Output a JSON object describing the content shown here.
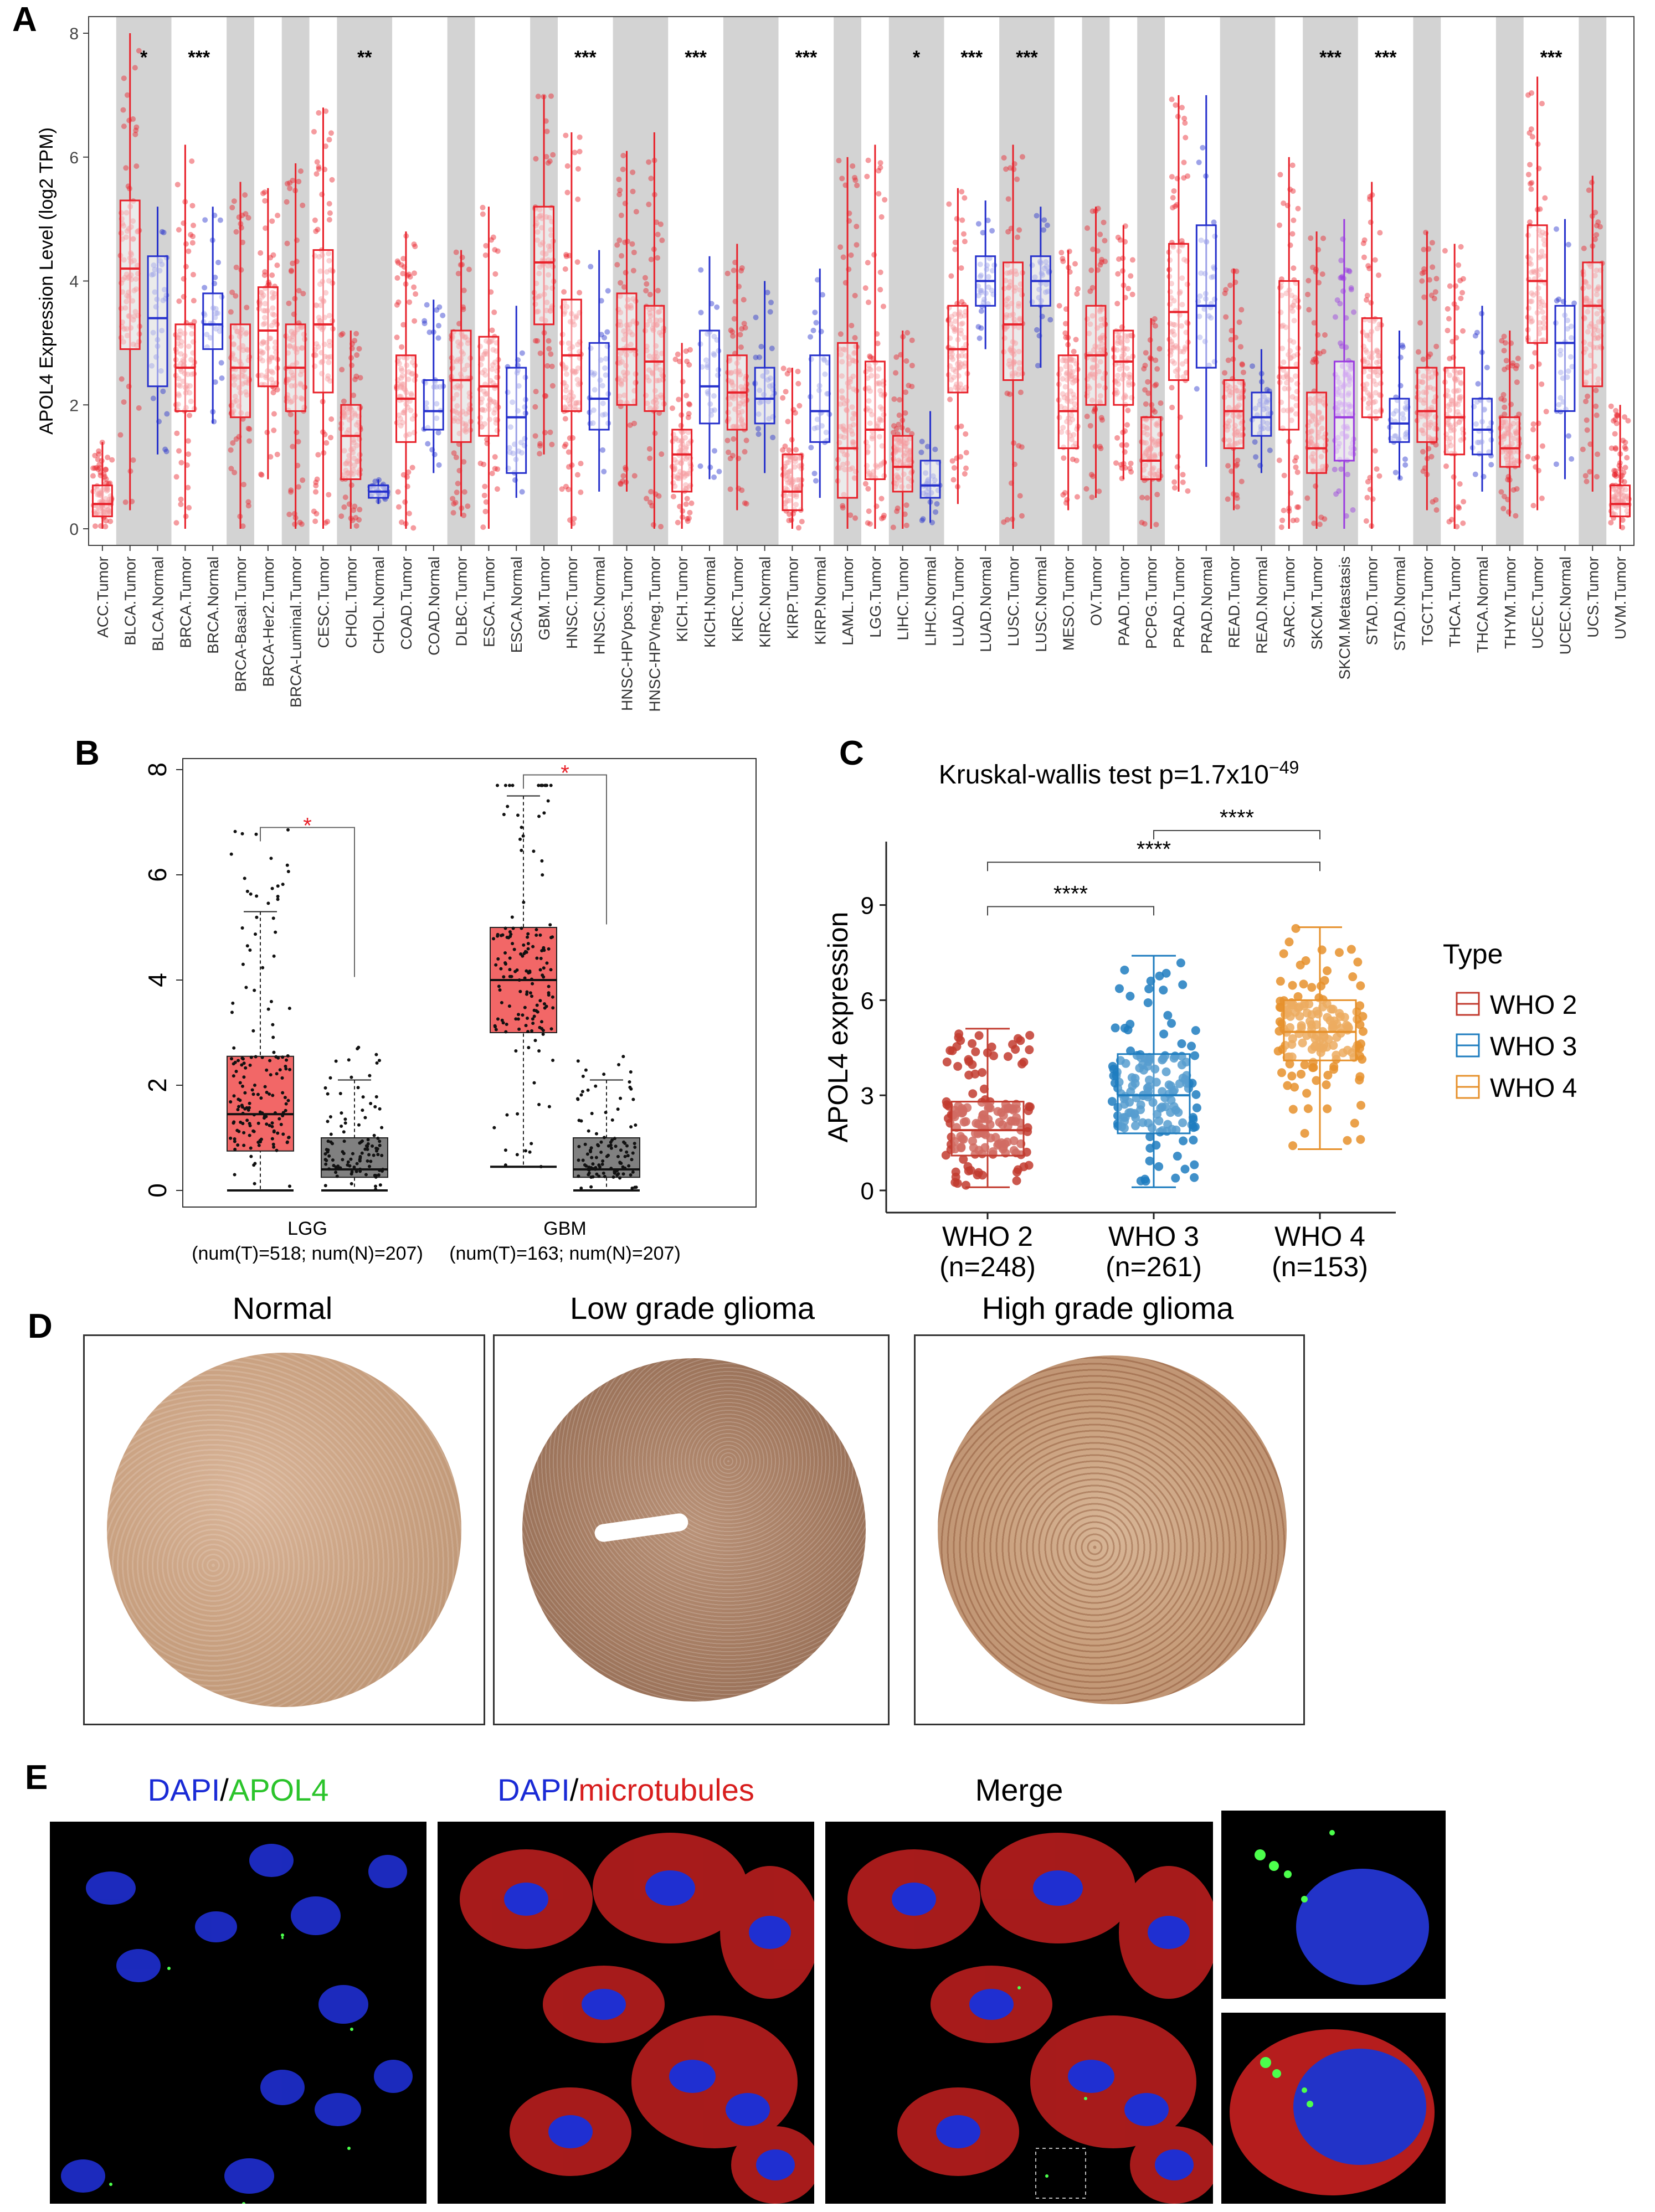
{
  "panels": {
    "A": "A",
    "B": "B",
    "C": "C",
    "D": "D",
    "E": "E"
  },
  "chart_data": [
    {
      "id": "A",
      "type": "box",
      "ylabel": "APOL4 Expression Level (log2 TPM)",
      "ylim": [
        0,
        8
      ],
      "yticks": [
        "0",
        "2",
        "4",
        "6",
        "8"
      ],
      "groups": [
        {
          "name": "ACC",
          "boxes": [
            {
              "label": "ACC.Tumor",
              "type": "tumor",
              "q1": 0.2,
              "med": 0.4,
              "q3": 0.7,
              "lo": 0.0,
              "hi": 1.4
            }
          ]
        },
        {
          "name": "BLCA",
          "sig": "*",
          "boxes": [
            {
              "label": "BLCA.Tumor",
              "type": "tumor",
              "q1": 2.9,
              "med": 4.2,
              "q3": 5.3,
              "lo": 0.3,
              "hi": 8.0
            },
            {
              "label": "BLCA.Normal",
              "type": "normal",
              "q1": 2.3,
              "med": 3.4,
              "q3": 4.4,
              "lo": 1.2,
              "hi": 5.2
            }
          ]
        },
        {
          "name": "BRCA",
          "sig": "***",
          "boxes": [
            {
              "label": "BRCA.Tumor",
              "type": "tumor",
              "q1": 1.9,
              "med": 2.6,
              "q3": 3.3,
              "lo": 0.0,
              "hi": 6.2
            },
            {
              "label": "BRCA.Normal",
              "type": "normal",
              "q1": 2.9,
              "med": 3.3,
              "q3": 3.8,
              "lo": 1.7,
              "hi": 5.2
            }
          ]
        },
        {
          "name": "BRCA-Basal",
          "boxes": [
            {
              "label": "BRCA-Basal.Tumor",
              "type": "tumor",
              "q1": 1.8,
              "med": 2.6,
              "q3": 3.3,
              "lo": 0.0,
              "hi": 5.6
            }
          ]
        },
        {
          "name": "BRCA-Her2",
          "boxes": [
            {
              "label": "BRCA-Her2.Tumor",
              "type": "tumor",
              "q1": 2.3,
              "med": 3.2,
              "q3": 3.9,
              "lo": 0.8,
              "hi": 5.5
            }
          ]
        },
        {
          "name": "BRCA-Luminal",
          "boxes": [
            {
              "label": "BRCA-Luminal.Tumor",
              "type": "tumor",
              "q1": 1.9,
              "med": 2.6,
              "q3": 3.3,
              "lo": 0.0,
              "hi": 5.9
            }
          ]
        },
        {
          "name": "CESC",
          "boxes": [
            {
              "label": "CESC.Tumor",
              "type": "tumor",
              "q1": 2.2,
              "med": 3.3,
              "q3": 4.5,
              "lo": 0.0,
              "hi": 6.8
            }
          ]
        },
        {
          "name": "CHOL",
          "sig": "**",
          "boxes": [
            {
              "label": "CHOL.Tumor",
              "type": "tumor",
              "q1": 0.8,
              "med": 1.5,
              "q3": 2.0,
              "lo": 0.0,
              "hi": 3.2
            },
            {
              "label": "CHOL.Normal",
              "type": "normal",
              "q1": 0.5,
              "med": 0.6,
              "q3": 0.7,
              "lo": 0.4,
              "hi": 0.8
            }
          ]
        },
        {
          "name": "COAD",
          "boxes": [
            {
              "label": "COAD.Tumor",
              "type": "tumor",
              "q1": 1.4,
              "med": 2.1,
              "q3": 2.8,
              "lo": 0.0,
              "hi": 4.8
            },
            {
              "label": "COAD.Normal",
              "type": "normal",
              "q1": 1.6,
              "med": 1.9,
              "q3": 2.4,
              "lo": 0.9,
              "hi": 3.7
            }
          ]
        },
        {
          "name": "DLBC",
          "boxes": [
            {
              "label": "DLBC.Tumor",
              "type": "tumor",
              "q1": 1.4,
              "med": 2.4,
              "q3": 3.2,
              "lo": 0.2,
              "hi": 4.5
            }
          ]
        },
        {
          "name": "ESCA",
          "boxes": [
            {
              "label": "ESCA.Tumor",
              "type": "tumor",
              "q1": 1.5,
              "med": 2.3,
              "q3": 3.1,
              "lo": 0.0,
              "hi": 5.2
            },
            {
              "label": "ESCA.Normal",
              "type": "normal",
              "q1": 0.9,
              "med": 1.8,
              "q3": 2.6,
              "lo": 0.5,
              "hi": 3.6
            }
          ]
        },
        {
          "name": "GBM",
          "boxes": [
            {
              "label": "GBM.Tumor",
              "type": "tumor",
              "q1": 3.3,
              "med": 4.3,
              "q3": 5.2,
              "lo": 1.2,
              "hi": 7.0
            }
          ]
        },
        {
          "name": "HNSC",
          "sig": "***",
          "boxes": [
            {
              "label": "HNSC.Tumor",
              "type": "tumor",
              "q1": 1.9,
              "med": 2.8,
              "q3": 3.7,
              "lo": 0.0,
              "hi": 6.4
            },
            {
              "label": "HNSC.Normal",
              "type": "normal",
              "q1": 1.6,
              "med": 2.1,
              "q3": 3.0,
              "lo": 0.6,
              "hi": 4.5
            }
          ]
        },
        {
          "name": "HNSC-HPV",
          "boxes": [
            {
              "label": "HNSC-HPVpos.Tumor",
              "type": "tumor",
              "q1": 2.0,
              "med": 2.9,
              "q3": 3.8,
              "lo": 0.6,
              "hi": 6.1
            },
            {
              "label": "HNSC-HPVneg.Tumor",
              "type": "tumor",
              "q1": 1.9,
              "med": 2.7,
              "q3": 3.6,
              "lo": 0.0,
              "hi": 6.4
            }
          ]
        },
        {
          "name": "KICH",
          "sig": "***",
          "boxes": [
            {
              "label": "KICH.Tumor",
              "type": "tumor",
              "q1": 0.6,
              "med": 1.2,
              "q3": 1.6,
              "lo": 0.0,
              "hi": 3.0
            },
            {
              "label": "KICH.Normal",
              "type": "normal",
              "q1": 1.7,
              "med": 2.3,
              "q3": 3.2,
              "lo": 0.8,
              "hi": 4.4
            }
          ]
        },
        {
          "name": "KIRC",
          "boxes": [
            {
              "label": "KIRC.Tumor",
              "type": "tumor",
              "q1": 1.6,
              "med": 2.2,
              "q3": 2.8,
              "lo": 0.3,
              "hi": 4.6
            },
            {
              "label": "KIRC.Normal",
              "type": "normal",
              "q1": 1.7,
              "med": 2.1,
              "q3": 2.6,
              "lo": 0.9,
              "hi": 4.0
            }
          ]
        },
        {
          "name": "KIRP",
          "sig": "***",
          "boxes": [
            {
              "label": "KIRP.Tumor",
              "type": "tumor",
              "q1": 0.3,
              "med": 0.6,
              "q3": 1.2,
              "lo": 0.0,
              "hi": 2.6
            },
            {
              "label": "KIRP.Normal",
              "type": "normal",
              "q1": 1.4,
              "med": 1.9,
              "q3": 2.8,
              "lo": 0.5,
              "hi": 4.2
            }
          ]
        },
        {
          "name": "LAML",
          "boxes": [
            {
              "label": "LAML.Tumor",
              "type": "tumor",
              "q1": 0.5,
              "med": 1.3,
              "q3": 3.0,
              "lo": 0.0,
              "hi": 6.0
            }
          ]
        },
        {
          "name": "LGG",
          "boxes": [
            {
              "label": "LGG.Tumor",
              "type": "tumor",
              "q1": 0.8,
              "med": 1.6,
              "q3": 2.7,
              "lo": 0.0,
              "hi": 6.2
            }
          ]
        },
        {
          "name": "LIHC",
          "sig": "*",
          "boxes": [
            {
              "label": "LIHC.Tumor",
              "type": "tumor",
              "q1": 0.6,
              "med": 1.0,
              "q3": 1.5,
              "lo": 0.0,
              "hi": 3.2
            },
            {
              "label": "LIHC.Normal",
              "type": "normal",
              "q1": 0.5,
              "med": 0.7,
              "q3": 1.1,
              "lo": 0.1,
              "hi": 1.9
            }
          ]
        },
        {
          "name": "LUAD",
          "sig": "***",
          "boxes": [
            {
              "label": "LUAD.Tumor",
              "type": "tumor",
              "q1": 2.2,
              "med": 2.9,
              "q3": 3.6,
              "lo": 0.4,
              "hi": 5.5
            },
            {
              "label": "LUAD.Normal",
              "type": "normal",
              "q1": 3.6,
              "med": 4.0,
              "q3": 4.4,
              "lo": 2.9,
              "hi": 5.3
            }
          ]
        },
        {
          "name": "LUSC",
          "sig": "***",
          "boxes": [
            {
              "label": "LUSC.Tumor",
              "type": "tumor",
              "q1": 2.4,
              "med": 3.3,
              "q3": 4.3,
              "lo": 0.0,
              "hi": 6.2
            },
            {
              "label": "LUSC.Normal",
              "type": "normal",
              "q1": 3.6,
              "med": 4.0,
              "q3": 4.4,
              "lo": 2.6,
              "hi": 5.2
            }
          ]
        },
        {
          "name": "MESO",
          "boxes": [
            {
              "label": "MESO.Tumor",
              "type": "tumor",
              "q1": 1.3,
              "med": 1.9,
              "q3": 2.8,
              "lo": 0.3,
              "hi": 4.5
            }
          ]
        },
        {
          "name": "OV",
          "boxes": [
            {
              "label": "OV.Tumor",
              "type": "tumor",
              "q1": 2.0,
              "med": 2.8,
              "q3": 3.6,
              "lo": 0.5,
              "hi": 5.2
            }
          ]
        },
        {
          "name": "PAAD",
          "boxes": [
            {
              "label": "PAAD.Tumor",
              "type": "tumor",
              "q1": 2.0,
              "med": 2.7,
              "q3": 3.2,
              "lo": 0.8,
              "hi": 4.9
            }
          ]
        },
        {
          "name": "PCPG",
          "boxes": [
            {
              "label": "PCPG.Tumor",
              "type": "tumor",
              "q1": 0.8,
              "med": 1.1,
              "q3": 1.8,
              "lo": 0.0,
              "hi": 3.4
            }
          ]
        },
        {
          "name": "PRAD",
          "boxes": [
            {
              "label": "PRAD.Tumor",
              "type": "tumor",
              "q1": 2.4,
              "med": 3.5,
              "q3": 4.6,
              "lo": 0.6,
              "hi": 7.0
            },
            {
              "label": "PRAD.Normal",
              "type": "normal",
              "q1": 2.6,
              "med": 3.6,
              "q3": 4.9,
              "lo": 1.0,
              "hi": 7.0
            }
          ]
        },
        {
          "name": "READ",
          "boxes": [
            {
              "label": "READ.Tumor",
              "type": "tumor",
              "q1": 1.3,
              "med": 1.9,
              "q3": 2.4,
              "lo": 0.3,
              "hi": 4.2
            },
            {
              "label": "READ.Normal",
              "type": "normal",
              "q1": 1.5,
              "med": 1.8,
              "q3": 2.2,
              "lo": 0.9,
              "hi": 2.9
            }
          ]
        },
        {
          "name": "SARC",
          "boxes": [
            {
              "label": "SARC.Tumor",
              "type": "tumor",
              "q1": 1.6,
              "med": 2.6,
              "q3": 4.0,
              "lo": 0.0,
              "hi": 6.0
            }
          ]
        },
        {
          "name": "SKCM",
          "sig": "***",
          "boxes": [
            {
              "label": "SKCM.Tumor",
              "type": "tumor",
              "q1": 0.9,
              "med": 1.3,
              "q3": 2.2,
              "lo": 0.0,
              "hi": 4.8
            },
            {
              "label": "SKCM.Metastasis",
              "type": "metastasis",
              "q1": 1.1,
              "med": 1.8,
              "q3": 2.7,
              "lo": 0.0,
              "hi": 5.0
            }
          ]
        },
        {
          "name": "STAD",
          "sig": "***",
          "boxes": [
            {
              "label": "STAD.Tumor",
              "type": "tumor",
              "q1": 1.8,
              "med": 2.6,
              "q3": 3.4,
              "lo": 0.0,
              "hi": 5.6
            },
            {
              "label": "STAD.Normal",
              "type": "normal",
              "q1": 1.4,
              "med": 1.7,
              "q3": 2.1,
              "lo": 0.8,
              "hi": 3.2
            }
          ]
        },
        {
          "name": "TGCT",
          "boxes": [
            {
              "label": "TGCT.Tumor",
              "type": "tumor",
              "q1": 1.4,
              "med": 1.9,
              "q3": 2.6,
              "lo": 0.3,
              "hi": 4.8
            }
          ]
        },
        {
          "name": "THCA",
          "boxes": [
            {
              "label": "THCA.Tumor",
              "type": "tumor",
              "q1": 1.2,
              "med": 1.8,
              "q3": 2.6,
              "lo": 0.0,
              "hi": 4.6
            },
            {
              "label": "THCA.Normal",
              "type": "normal",
              "q1": 1.2,
              "med": 1.6,
              "q3": 2.1,
              "lo": 0.6,
              "hi": 3.6
            }
          ]
        },
        {
          "name": "THYM",
          "boxes": [
            {
              "label": "THYM.Tumor",
              "type": "tumor",
              "q1": 1.0,
              "med": 1.3,
              "q3": 1.8,
              "lo": 0.2,
              "hi": 3.2
            }
          ]
        },
        {
          "name": "UCEC",
          "sig": "***",
          "boxes": [
            {
              "label": "UCEC.Tumor",
              "type": "tumor",
              "q1": 3.0,
              "med": 4.0,
              "q3": 4.9,
              "lo": 0.3,
              "hi": 7.3
            },
            {
              "label": "UCEC.Normal",
              "type": "normal",
              "q1": 1.9,
              "med": 3.0,
              "q3": 3.6,
              "lo": 0.8,
              "hi": 5.0
            }
          ]
        },
        {
          "name": "UCS",
          "boxes": [
            {
              "label": "UCS.Tumor",
              "type": "tumor",
              "q1": 2.3,
              "med": 3.6,
              "q3": 4.3,
              "lo": 0.6,
              "hi": 5.7
            }
          ]
        },
        {
          "name": "UVM",
          "boxes": [
            {
              "label": "UVM.Tumor",
              "type": "tumor",
              "q1": 0.2,
              "med": 0.4,
              "q3": 0.7,
              "lo": 0.0,
              "hi": 2.0
            }
          ]
        }
      ],
      "colors": {
        "tumor": "#e8212a",
        "normal": "#2530cc",
        "metastasis": "#9a3ae0",
        "shade": "#d3d3d3"
      }
    },
    {
      "id": "B",
      "type": "box",
      "ylim": [
        0,
        8
      ],
      "yticks": [
        "0",
        "2",
        "4",
        "6",
        "8"
      ],
      "groups": [
        {
          "name": "LGG",
          "sub": "(num(T)=518; num(N)=207)",
          "sig": "*",
          "tumor": {
            "q1": 0.75,
            "med": 1.45,
            "q3": 2.55,
            "lo": 0.0,
            "hi": 5.3
          },
          "normal": {
            "q1": 0.25,
            "med": 0.4,
            "q3": 1.0,
            "lo": 0.0,
            "hi": 2.1
          }
        },
        {
          "name": "GBM",
          "sub": "(num(T)=163; num(N)=207)",
          "sig": "*",
          "tumor": {
            "q1": 3.0,
            "med": 4.0,
            "q3": 5.0,
            "lo": 0.45,
            "hi": 7.5
          },
          "normal": {
            "q1": 0.25,
            "med": 0.4,
            "q3": 1.0,
            "lo": 0.0,
            "hi": 2.1
          }
        }
      ],
      "colors": {
        "tumor": "#f26767",
        "normal": "#808080",
        "sig": "#e8212a"
      }
    },
    {
      "id": "C",
      "type": "box",
      "title": "Kruskal-wallis test p=1.7x10",
      "title_sup": "−49",
      "ylabel": "APOL4 expression",
      "ylim": [
        0,
        11
      ],
      "yticks": [
        "0",
        "3",
        "6",
        "9"
      ],
      "legend_title": "Type",
      "comparisons": [
        {
          "from": "WHO 2",
          "to": "WHO 3",
          "label": "****"
        },
        {
          "from": "WHO 2",
          "to": "WHO 4",
          "label": "****"
        },
        {
          "from": "WHO 3",
          "to": "WHO 4",
          "label": "****"
        }
      ],
      "groups": [
        {
          "name": "WHO 2",
          "n": "(n=248)",
          "color": "#c23b2f",
          "q1": 1.1,
          "med": 1.9,
          "q3": 2.8,
          "lo": 0.1,
          "hi": 5.1
        },
        {
          "name": "WHO 3",
          "n": "(n=261)",
          "color": "#1f7dbf",
          "q1": 1.8,
          "med": 3.0,
          "q3": 4.3,
          "lo": 0.1,
          "hi": 7.4
        },
        {
          "name": "WHO 4",
          "n": "(n=153)",
          "color": "#e6912c",
          "q1": 4.1,
          "med": 5.0,
          "q3": 6.0,
          "lo": 1.3,
          "hi": 8.3
        }
      ]
    }
  ],
  "panel_d": {
    "titles": [
      "Normal",
      "Low grade glioma",
      "High grade glioma"
    ]
  },
  "panel_e": {
    "dapi": "DAPI",
    "slash": "/",
    "apol4": "APOL4",
    "microtubules": "microtubules",
    "merge": "Merge"
  }
}
